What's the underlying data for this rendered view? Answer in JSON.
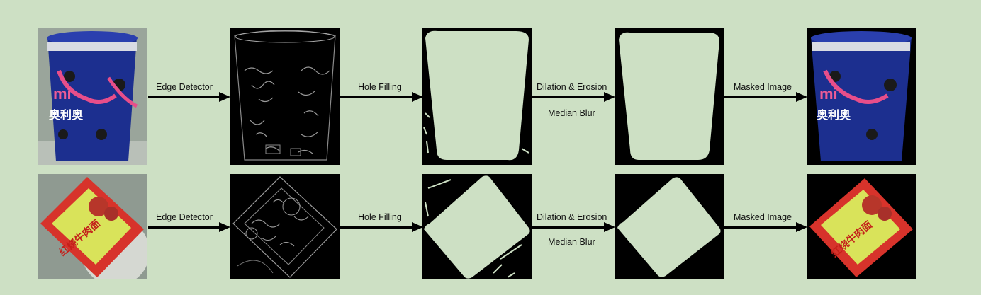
{
  "rows": [
    {
      "labels": {
        "step1": "Edge Detector",
        "step2": "Hole Filling",
        "step3": "Dilation & Erosion",
        "step3b": "Median Blur",
        "step4": "Masked Image"
      },
      "product_text": {
        "brand": "mi",
        "name": "奥利奥"
      }
    },
    {
      "labels": {
        "step1": "Edge Detector",
        "step2": "Hole Filling",
        "step3": "Dilation & Erosion",
        "step3b": "Median Blur",
        "step4": "Masked Image"
      },
      "product_text": {
        "name": "红烧牛肉面"
      }
    }
  ],
  "colors": {
    "background": "#cde0c4",
    "mask_fill": "#cde0c4",
    "arrow": "#000000"
  }
}
